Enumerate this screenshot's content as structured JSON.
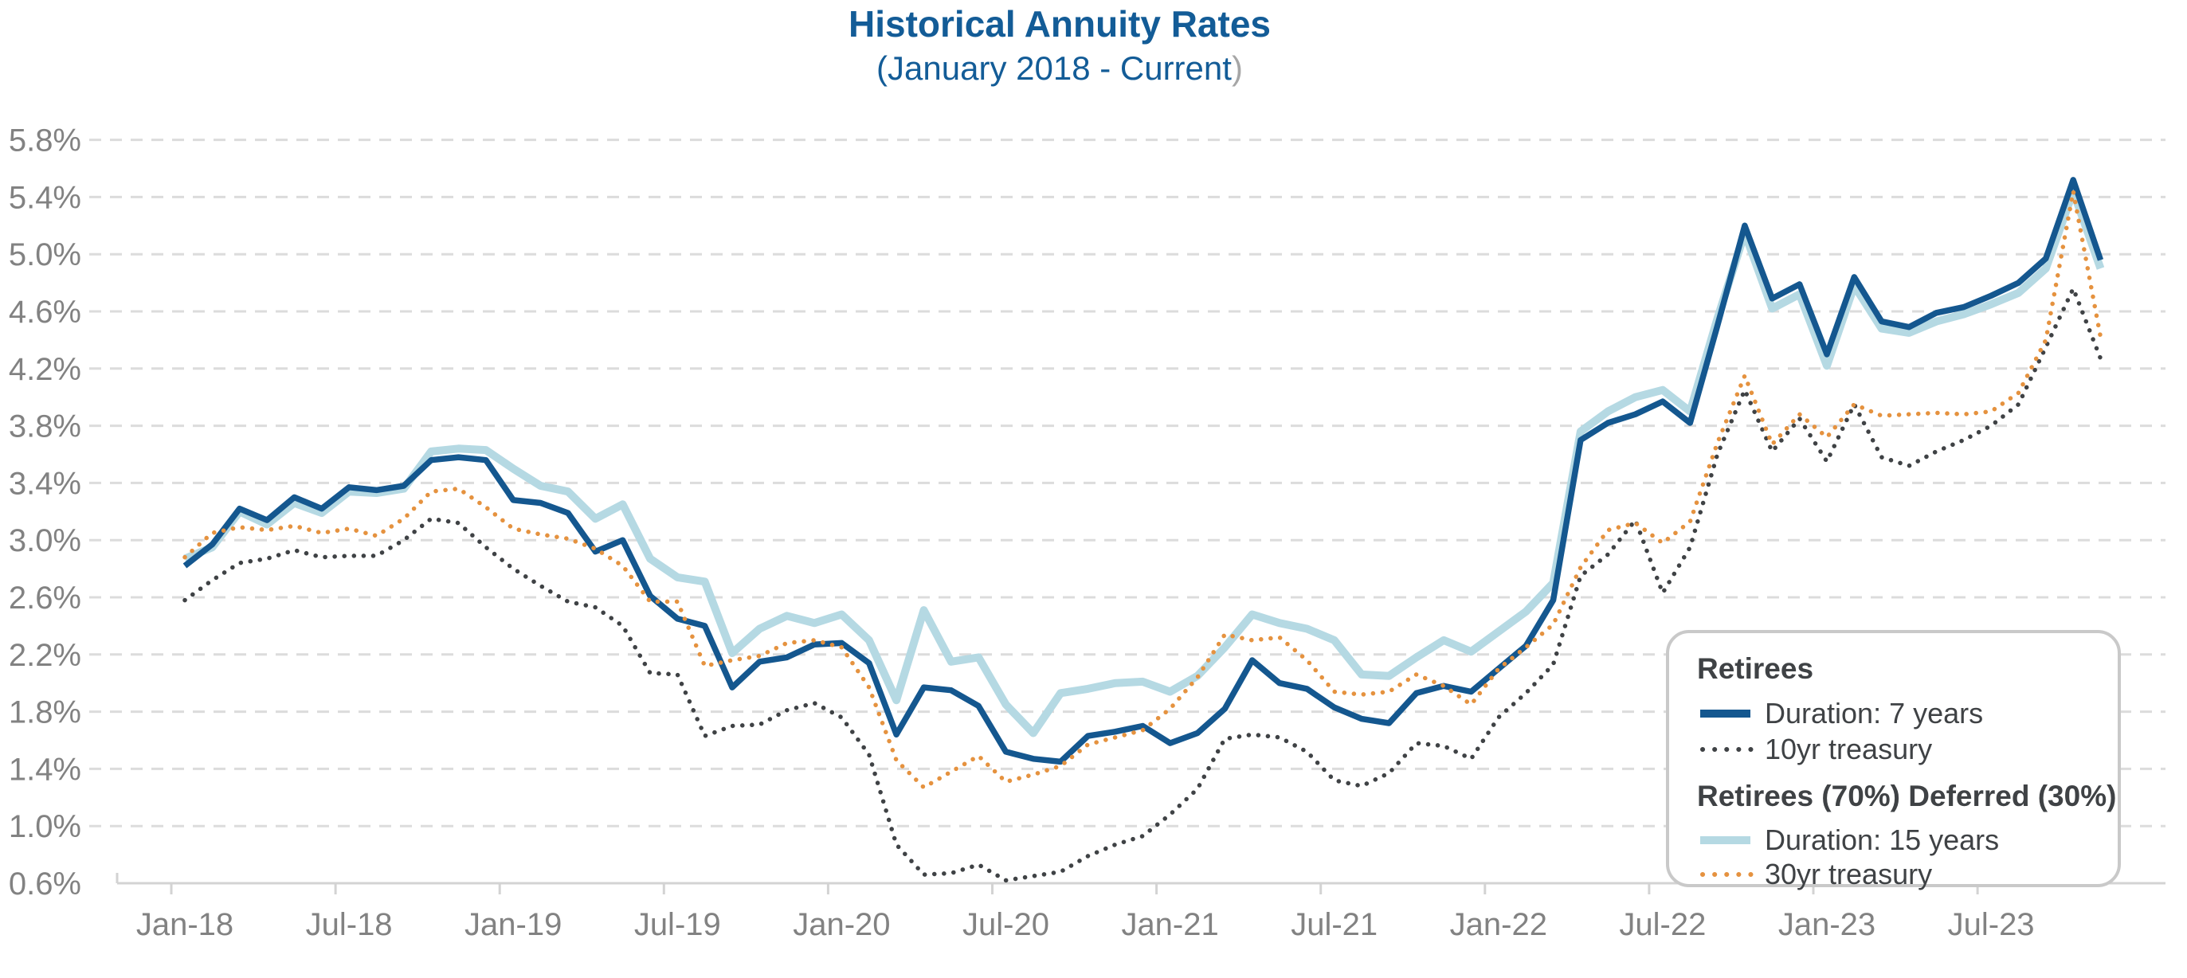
{
  "title": "Historical Annuity Rates",
  "subtitle": "(January 2018 - Current",
  "subtitle_suffix": ")",
  "colors": {
    "title_blue": "#135c97",
    "duration7_blue": "#14578f",
    "duration15_light_blue": "#b5d9e3",
    "treasury10_gray": "#3f4245",
    "treasury30_orange": "#e5923f",
    "gridline": "#dcdcdc",
    "axis_line": "#d3d3d3",
    "axis_label_gray": "#828282",
    "subtitle_paren_gray": "#a6a6a6",
    "legend_border": "#c9c9c9"
  },
  "y_axis": {
    "tick_labels_bottom_to_top": [
      "0.6%",
      "1.0%",
      "1.4%",
      "1.8%",
      "2.2%",
      "2.6%",
      "3.0%",
      "3.4%",
      "3.8%",
      "4.2%",
      "4.6%",
      "5.0%",
      "5.4%",
      "5.8%"
    ]
  },
  "x_axis": {
    "tick_labels": [
      "Jan-18",
      "Jul-18",
      "Jan-19",
      "Jul-19",
      "Jan-20",
      "Jul-20",
      "Jan-21",
      "Jul-21",
      "Jan-22",
      "Jul-22",
      "Jan-23",
      "Jul-23"
    ]
  },
  "chart_data": {
    "type": "line",
    "x_start_month": "Jan-2018",
    "x_end_month": "Nov-2023",
    "x_monthly_points": 71,
    "ylim": [
      0.6,
      5.8
    ],
    "grid": "horizontal-dashed",
    "legend_position": "bottom-right",
    "series": [
      {
        "name": "Duration: 7 years",
        "slug": "duration-7-years",
        "group": "Retirees",
        "style": "solid",
        "color": "#14578f",
        "values": [
          2.82,
          2.97,
          3.22,
          3.14,
          3.3,
          3.22,
          3.37,
          3.35,
          3.38,
          3.56,
          3.58,
          3.56,
          3.28,
          3.26,
          3.19,
          2.92,
          3.0,
          2.61,
          2.45,
          2.4,
          1.97,
          2.15,
          2.18,
          2.27,
          2.28,
          2.14,
          1.64,
          1.97,
          1.95,
          1.84,
          1.52,
          1.47,
          1.45,
          1.63,
          1.66,
          1.7,
          1.58,
          1.65,
          1.82,
          2.16,
          2.0,
          1.96,
          1.83,
          1.75,
          1.72,
          1.93,
          1.98,
          1.94,
          2.1,
          2.26,
          2.58,
          3.7,
          3.82,
          3.88,
          3.97,
          3.82,
          4.5,
          5.2,
          4.69,
          4.79,
          4.3,
          4.84,
          4.53,
          4.49,
          4.59,
          4.63,
          4.71,
          4.8,
          4.97,
          5.52,
          4.96
        ]
      },
      {
        "name": "10yr treasury",
        "slug": "10yr-treasury",
        "group": "Retirees",
        "style": "dotted",
        "color": "#3f4245",
        "values": [
          2.58,
          2.72,
          2.84,
          2.87,
          2.93,
          2.88,
          2.89,
          2.89,
          3.0,
          3.15,
          3.12,
          2.95,
          2.8,
          2.68,
          2.57,
          2.53,
          2.4,
          2.07,
          2.06,
          1.63,
          1.7,
          1.71,
          1.81,
          1.86,
          1.76,
          1.5,
          0.87,
          0.66,
          0.67,
          0.73,
          0.62,
          0.65,
          0.68,
          0.79,
          0.87,
          0.93,
          1.08,
          1.26,
          1.61,
          1.64,
          1.62,
          1.52,
          1.32,
          1.28,
          1.37,
          1.58,
          1.56,
          1.47,
          1.76,
          1.93,
          2.13,
          2.75,
          2.9,
          3.14,
          2.63,
          2.95,
          3.6,
          4.05,
          3.62,
          3.85,
          3.55,
          3.95,
          3.58,
          3.52,
          3.62,
          3.7,
          3.8,
          3.95,
          4.35,
          4.76,
          4.27
        ]
      },
      {
        "name": "Duration: 15 years",
        "slug": "duration-15-years",
        "group": "Retirees (70%) Deferred (30%)",
        "style": "solid",
        "color": "#b5d9e3",
        "values": [
          2.87,
          2.95,
          3.2,
          3.11,
          3.26,
          3.19,
          3.34,
          3.33,
          3.36,
          3.62,
          3.64,
          3.63,
          3.5,
          3.38,
          3.34,
          3.15,
          3.25,
          2.87,
          2.74,
          2.71,
          2.21,
          2.38,
          2.47,
          2.42,
          2.48,
          2.3,
          1.88,
          2.51,
          2.15,
          2.18,
          1.85,
          1.65,
          1.93,
          1.96,
          2.0,
          2.01,
          1.94,
          2.05,
          2.25,
          2.48,
          2.42,
          2.38,
          2.3,
          2.06,
          2.05,
          2.18,
          2.3,
          2.22,
          2.36,
          2.5,
          2.7,
          3.76,
          3.9,
          4.0,
          4.05,
          3.9,
          4.55,
          5.15,
          4.62,
          4.72,
          4.22,
          4.78,
          4.48,
          4.45,
          4.53,
          4.58,
          4.65,
          4.73,
          4.9,
          5.44,
          4.9
        ]
      },
      {
        "name": "30yr treasury",
        "slug": "30yr-treasury",
        "group": "Retirees (70%) Deferred (30%)",
        "style": "dotted",
        "color": "#e5923f",
        "values": [
          2.88,
          3.05,
          3.09,
          3.07,
          3.1,
          3.05,
          3.08,
          3.03,
          3.15,
          3.34,
          3.36,
          3.23,
          3.08,
          3.04,
          3.01,
          2.94,
          2.82,
          2.57,
          2.57,
          2.12,
          2.16,
          2.19,
          2.28,
          2.3,
          2.25,
          1.97,
          1.46,
          1.27,
          1.38,
          1.49,
          1.31,
          1.36,
          1.42,
          1.57,
          1.62,
          1.67,
          1.82,
          2.04,
          2.34,
          2.3,
          2.32,
          2.16,
          1.94,
          1.92,
          1.94,
          2.06,
          1.98,
          1.85,
          2.1,
          2.25,
          2.41,
          2.81,
          3.07,
          3.12,
          2.98,
          3.13,
          3.68,
          4.15,
          3.67,
          3.88,
          3.72,
          3.95,
          3.87,
          3.88,
          3.89,
          3.88,
          3.9,
          4.03,
          4.4,
          5.44,
          4.42
        ]
      }
    ]
  }
}
